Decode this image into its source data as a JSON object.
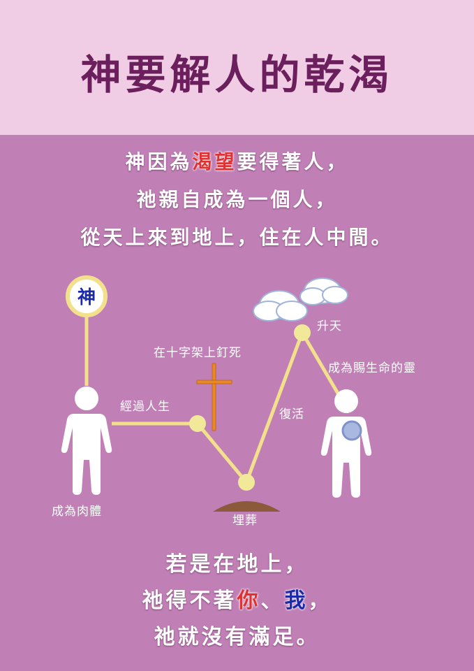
{
  "title": "神要解人的乾渴",
  "intro": {
    "line1_pre": "神因為",
    "line1_em": "渴望",
    "line1_post": "要得著人，",
    "line2": "祂親自成為一個人，",
    "line3": "從天上來到地上，住在人中間。"
  },
  "diagram": {
    "god_char": "神",
    "labels": {
      "incarnation": "成為肉體",
      "human_life": "經過人生",
      "crucifixion": "在十字架上釘死",
      "burial": "埋葬",
      "resurrection": "復活",
      "ascension": "升天",
      "life_giving_spirit": "成為賜生命的靈"
    },
    "colors": {
      "path": "#f2e08c",
      "node": "#f2e89a",
      "cross": "#e58a2a",
      "grave": "#8a5a3a",
      "spirit": "#a8b8e0"
    }
  },
  "outro": {
    "line1": "若是在地上，",
    "line2_pre": "祂得不著",
    "line2_you": "你",
    "line2_sep": "、",
    "line2_me": "我",
    "line2_post": "，",
    "line3": "祂就沒有滿足。"
  },
  "colors": {
    "header_bg": "#f0cde4",
    "body_bg": "#c080b6",
    "title": "#6b1f5c",
    "emphasis_red": "#e03030",
    "emphasis_blue": "#1a2aa8"
  }
}
